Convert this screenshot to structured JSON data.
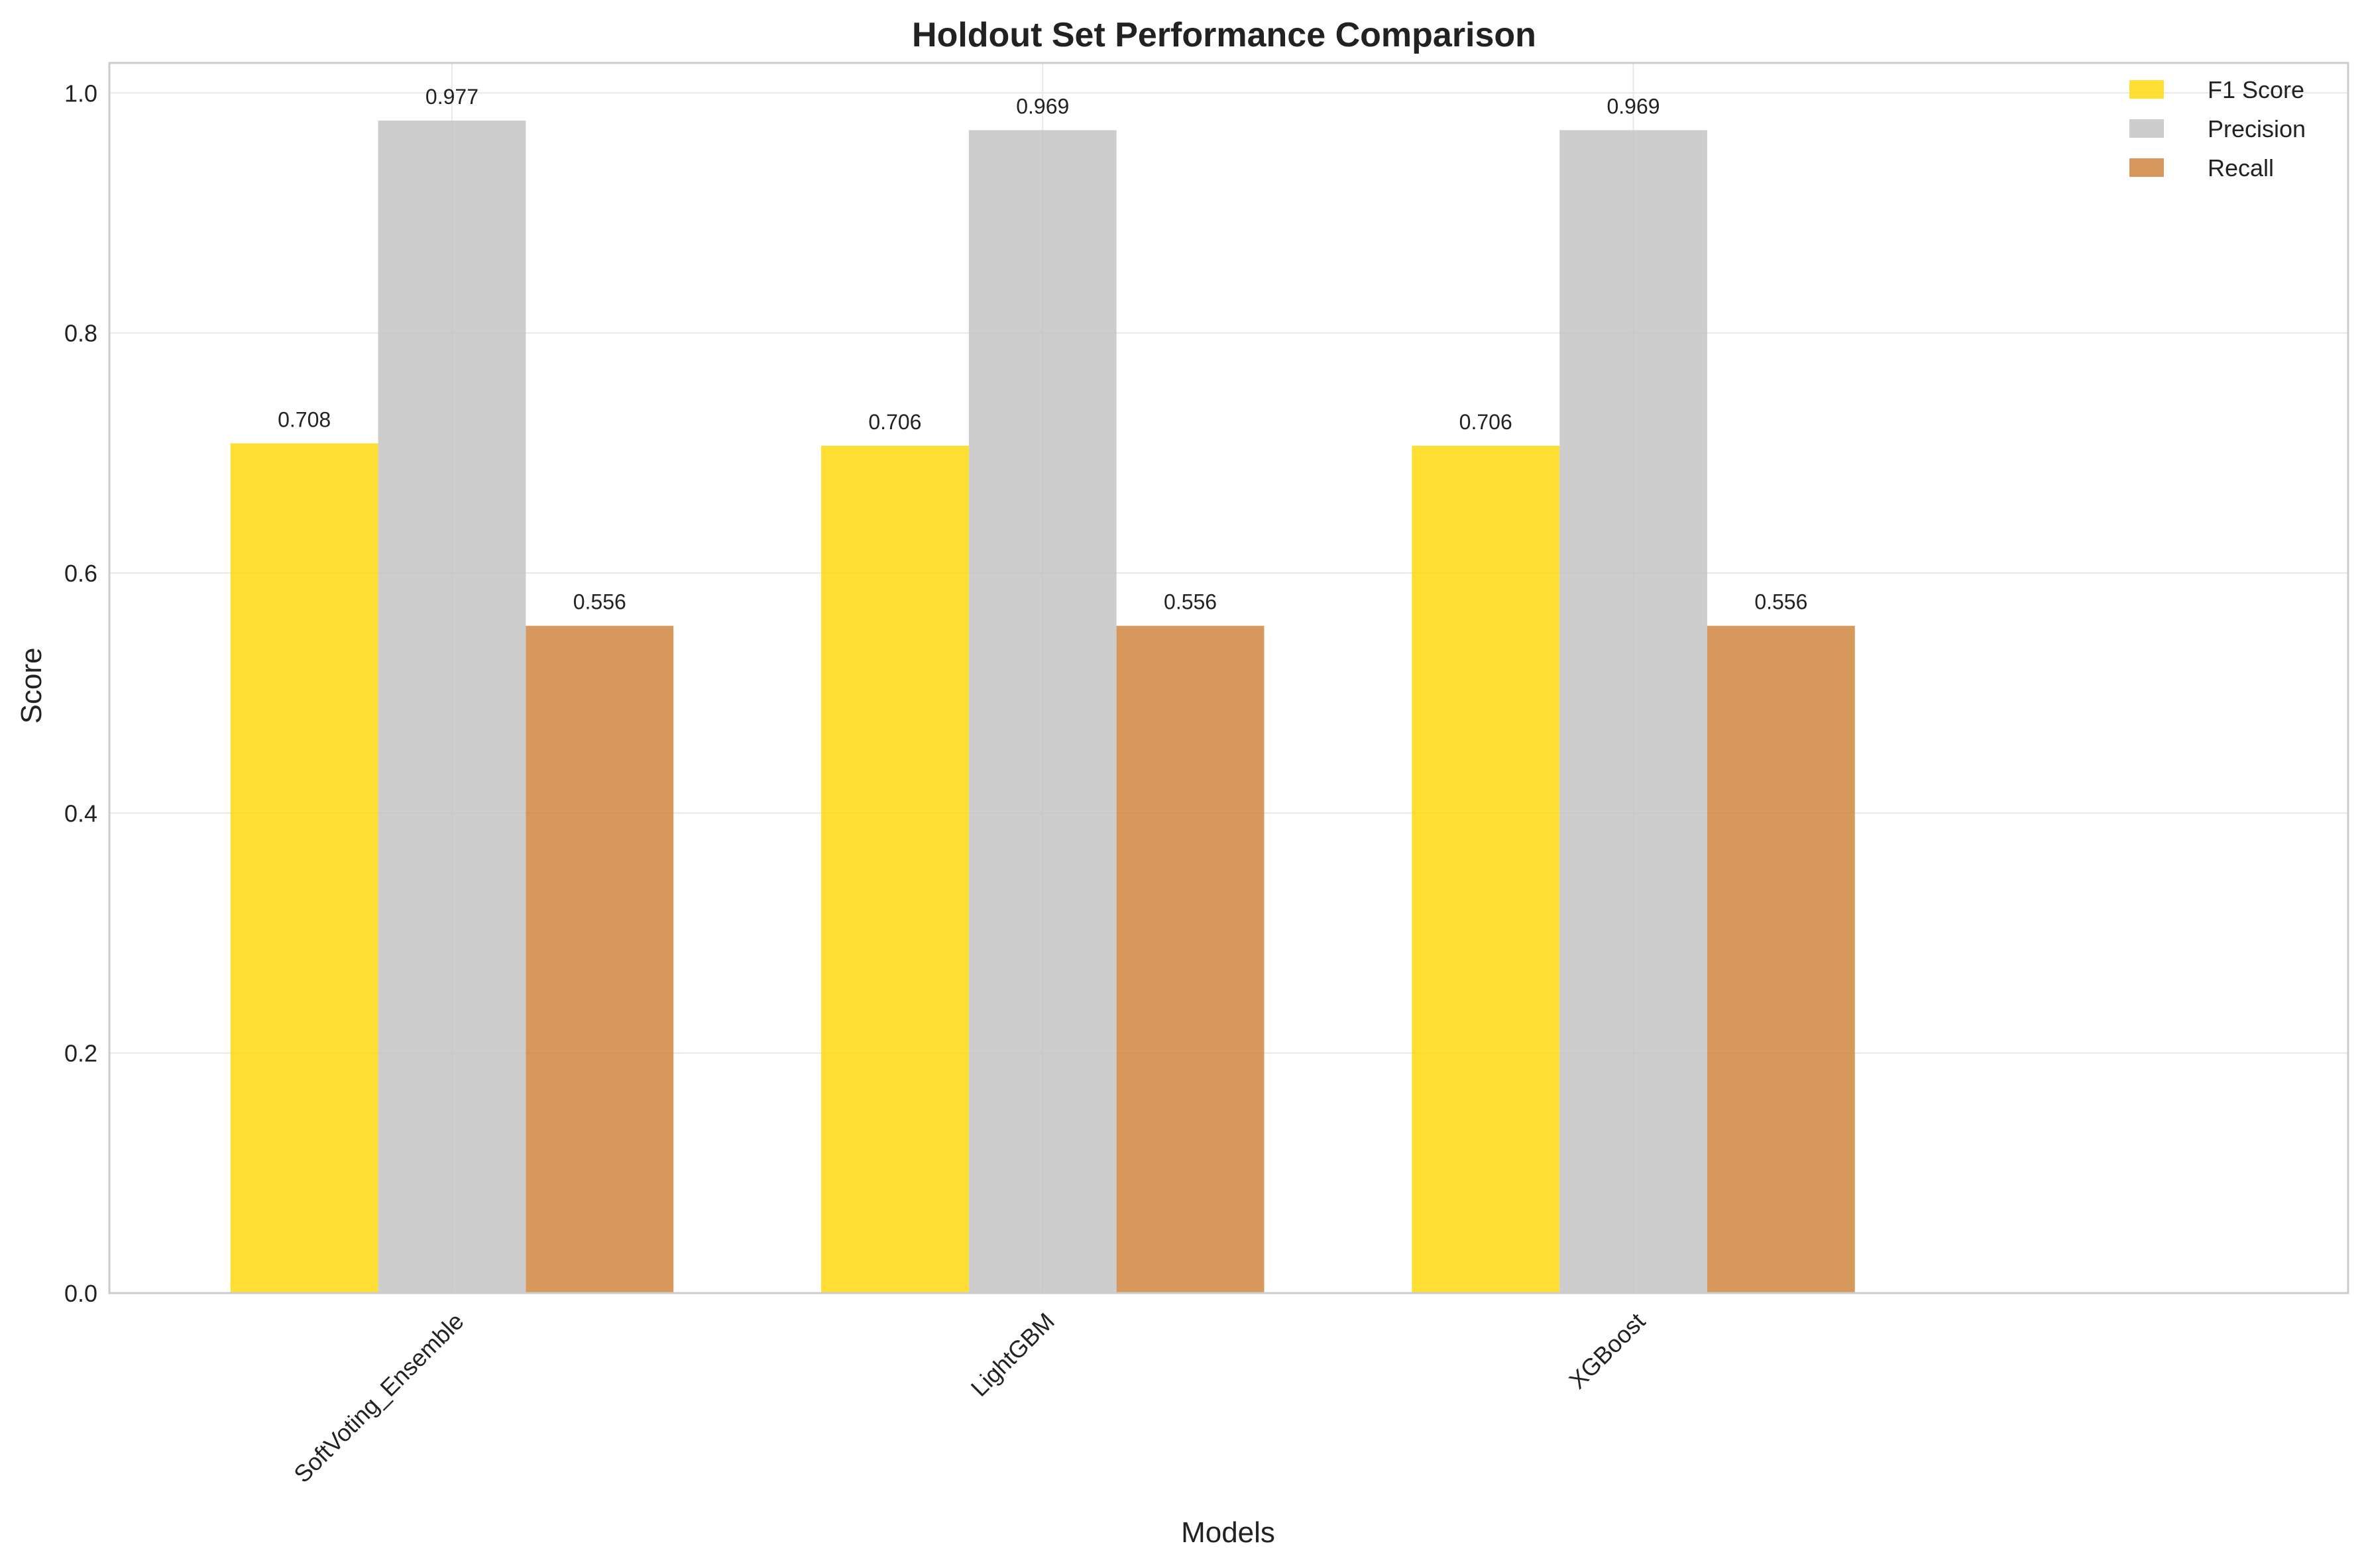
{
  "chart_data": {
    "type": "bar",
    "title": "Holdout Set Performance Comparison",
    "xlabel": "Models",
    "ylabel": "Score",
    "categories": [
      "SoftVoting_Ensemble",
      "LightGBM",
      "XGBoost"
    ],
    "series": [
      {
        "name": "F1 Score",
        "values": [
          0.708,
          0.706,
          0.706
        ],
        "labels": [
          "0.708",
          "0.706",
          "0.706"
        ],
        "color": "#FFD700"
      },
      {
        "name": "Precision",
        "values": [
          0.977,
          0.969,
          0.969
        ],
        "labels": [
          "0.977",
          "0.969",
          "0.969"
        ],
        "color": "#C0C0C0"
      },
      {
        "name": "Recall",
        "values": [
          0.556,
          0.556,
          0.556
        ],
        "labels": [
          "0.556",
          "0.556",
          "0.556"
        ],
        "color": "#CD7F32"
      }
    ],
    "ylim": [
      0,
      1.025
    ],
    "yticks": [
      0.0,
      0.2,
      0.4,
      0.6,
      0.8,
      1.0
    ],
    "ytick_labels": [
      "0.0",
      "0.2",
      "0.4",
      "0.6",
      "0.8",
      "1.0"
    ],
    "grid": true,
    "legend_position": "top-right"
  }
}
